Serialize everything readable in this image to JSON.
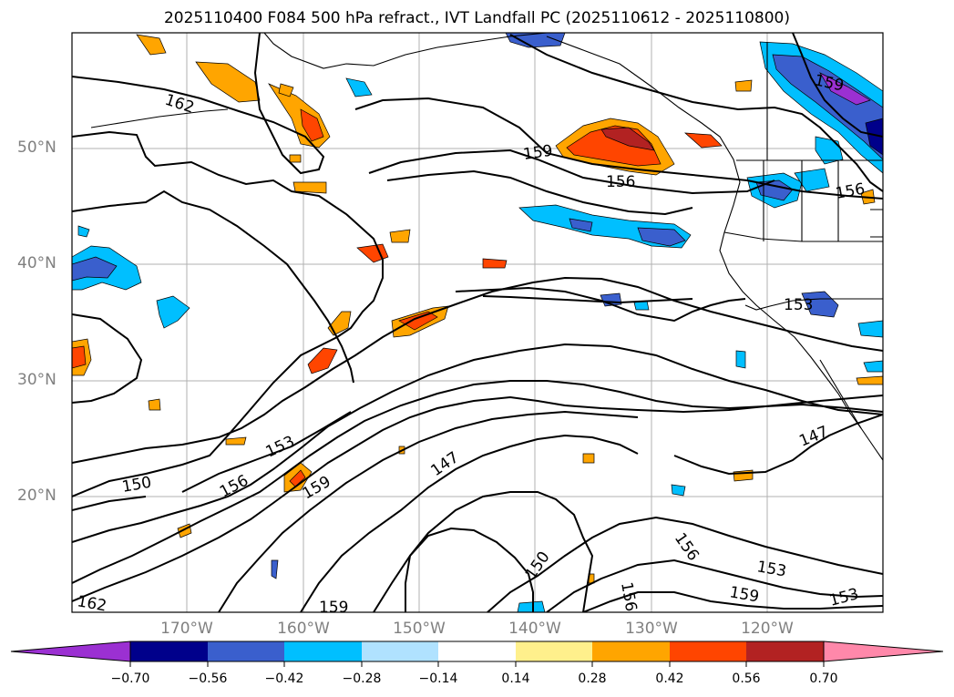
{
  "title": "2025110400 F084 500 hPa refract., IVT Landfall PC (2025110612 - 2025110800)",
  "axes": {
    "lat_labels": [
      "50°N",
      "40°N",
      "30°N",
      "20°N"
    ],
    "lon_labels": [
      "170°W",
      "160°W",
      "150°W",
      "140°W",
      "130°W",
      "120°W"
    ]
  },
  "contour_labels": [
    "162",
    "159",
    "156",
    "159",
    "153",
    "150",
    "153",
    "156",
    "159",
    "147",
    "147",
    "150",
    "156",
    "156",
    "153",
    "159",
    "162",
    "159",
    "153",
    "156"
  ],
  "colorbar": {
    "ticks": [
      "−0.70",
      "−0.56",
      "−0.42",
      "−0.28",
      "−0.14",
      "0.14",
      "0.28",
      "0.42",
      "0.56",
      "0.70"
    ],
    "colors": [
      "#9b30d2",
      "#00008b",
      "#3a5fcd",
      "#00bfff",
      "#b0e2ff",
      "#ffffff",
      "#fff08c",
      "#ffa500",
      "#ff4500",
      "#b22222",
      "#ff88aa"
    ]
  }
}
